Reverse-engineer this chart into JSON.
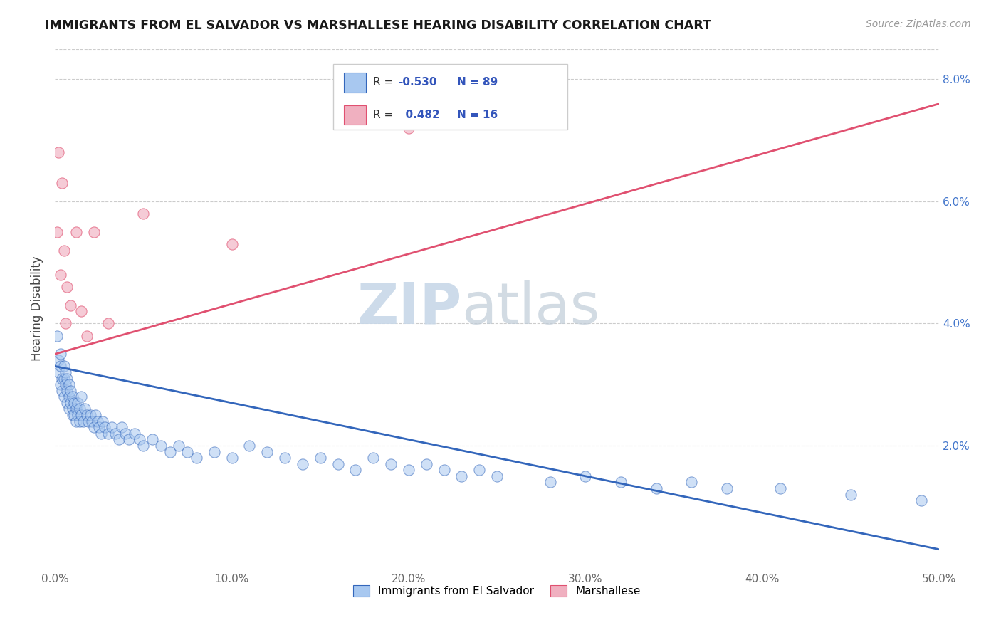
{
  "title": "IMMIGRANTS FROM EL SALVADOR VS MARSHALLESE HEARING DISABILITY CORRELATION CHART",
  "source_text": "Source: ZipAtlas.com",
  "ylabel": "Hearing Disability",
  "xmin": 0.0,
  "xmax": 0.5,
  "ymin": 0.0,
  "ymax": 0.085,
  "yticks": [
    0.0,
    0.02,
    0.04,
    0.06,
    0.08
  ],
  "ytick_labels_left": [
    "",
    "",
    "",
    "",
    ""
  ],
  "ytick_labels_right": [
    "",
    "2.0%",
    "4.0%",
    "6.0%",
    "8.0%"
  ],
  "xticks": [
    0.0,
    0.1,
    0.2,
    0.3,
    0.4,
    0.5
  ],
  "xtick_labels": [
    "0.0%",
    "10.0%",
    "20.0%",
    "30.0%",
    "40.0%",
    "50.0%"
  ],
  "blue_R": -0.53,
  "blue_N": 89,
  "pink_R": 0.482,
  "pink_N": 16,
  "blue_color": "#A8C8F0",
  "pink_color": "#F0B0C0",
  "blue_line_color": "#3366BB",
  "pink_line_color": "#E05070",
  "legend_R_color": "#3355BB",
  "blue_line_x0": 0.0,
  "blue_line_y0": 0.033,
  "blue_line_x1": 0.5,
  "blue_line_y1": 0.003,
  "pink_line_x0": 0.0,
  "pink_line_y0": 0.035,
  "pink_line_x1": 0.5,
  "pink_line_y1": 0.076,
  "blue_scatter_x": [
    0.001,
    0.002,
    0.002,
    0.003,
    0.003,
    0.003,
    0.004,
    0.004,
    0.005,
    0.005,
    0.005,
    0.006,
    0.006,
    0.007,
    0.007,
    0.007,
    0.008,
    0.008,
    0.008,
    0.009,
    0.009,
    0.01,
    0.01,
    0.01,
    0.011,
    0.011,
    0.012,
    0.012,
    0.013,
    0.013,
    0.014,
    0.014,
    0.015,
    0.015,
    0.016,
    0.017,
    0.018,
    0.019,
    0.02,
    0.021,
    0.022,
    0.023,
    0.024,
    0.025,
    0.026,
    0.027,
    0.028,
    0.03,
    0.032,
    0.034,
    0.036,
    0.038,
    0.04,
    0.042,
    0.045,
    0.048,
    0.05,
    0.055,
    0.06,
    0.065,
    0.07,
    0.075,
    0.08,
    0.09,
    0.1,
    0.11,
    0.12,
    0.13,
    0.14,
    0.15,
    0.16,
    0.17,
    0.18,
    0.19,
    0.2,
    0.21,
    0.22,
    0.23,
    0.24,
    0.25,
    0.28,
    0.3,
    0.32,
    0.34,
    0.36,
    0.38,
    0.41,
    0.45,
    0.49
  ],
  "blue_scatter_y": [
    0.038,
    0.034,
    0.032,
    0.035,
    0.033,
    0.03,
    0.031,
    0.029,
    0.033,
    0.031,
    0.028,
    0.032,
    0.03,
    0.031,
    0.029,
    0.027,
    0.03,
    0.028,
    0.026,
    0.029,
    0.027,
    0.028,
    0.026,
    0.025,
    0.027,
    0.025,
    0.026,
    0.024,
    0.027,
    0.025,
    0.026,
    0.024,
    0.028,
    0.025,
    0.024,
    0.026,
    0.025,
    0.024,
    0.025,
    0.024,
    0.023,
    0.025,
    0.024,
    0.023,
    0.022,
    0.024,
    0.023,
    0.022,
    0.023,
    0.022,
    0.021,
    0.023,
    0.022,
    0.021,
    0.022,
    0.021,
    0.02,
    0.021,
    0.02,
    0.019,
    0.02,
    0.019,
    0.018,
    0.019,
    0.018,
    0.02,
    0.019,
    0.018,
    0.017,
    0.018,
    0.017,
    0.016,
    0.018,
    0.017,
    0.016,
    0.017,
    0.016,
    0.015,
    0.016,
    0.015,
    0.014,
    0.015,
    0.014,
    0.013,
    0.014,
    0.013,
    0.013,
    0.012,
    0.011
  ],
  "pink_scatter_x": [
    0.001,
    0.002,
    0.003,
    0.004,
    0.005,
    0.006,
    0.007,
    0.009,
    0.012,
    0.015,
    0.018,
    0.022,
    0.03,
    0.05,
    0.1,
    0.2
  ],
  "pink_scatter_y": [
    0.055,
    0.068,
    0.048,
    0.063,
    0.052,
    0.04,
    0.046,
    0.043,
    0.055,
    0.042,
    0.038,
    0.055,
    0.04,
    0.058,
    0.053,
    0.072
  ]
}
